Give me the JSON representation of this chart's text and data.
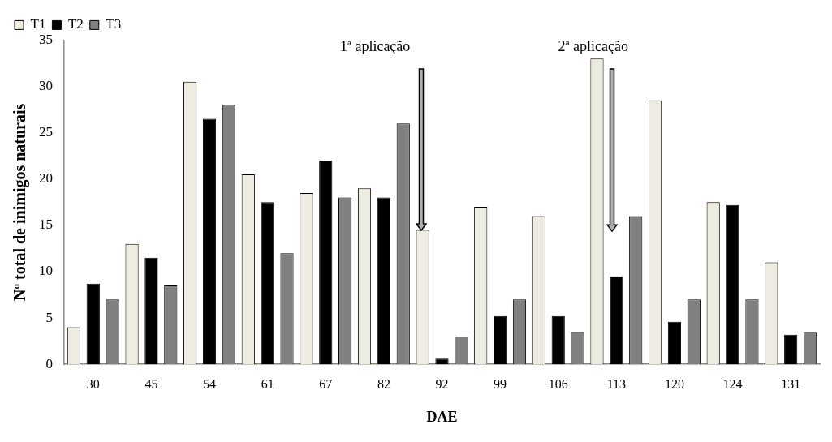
{
  "chart_data": {
    "type": "bar",
    "xlabel": "DAE",
    "ylabel": "Nº total de inimigos naturais",
    "categories": [
      "30",
      "45",
      "54",
      "61",
      "67",
      "82",
      "92",
      "99",
      "106",
      "113",
      "120",
      "124",
      "131"
    ],
    "series": [
      {
        "name": "T1",
        "color": "#eeebe0",
        "values": [
          4,
          13,
          30.5,
          20.5,
          18.5,
          19,
          14.5,
          17,
          16,
          33,
          28.5,
          17.5,
          11
        ]
      },
      {
        "name": "T2",
        "color": "#000000",
        "values": [
          8.7,
          11.5,
          26.5,
          17.5,
          22,
          18,
          0.6,
          5.2,
          5.2,
          9.5,
          4.6,
          17.2,
          3.2
        ]
      },
      {
        "name": "T3",
        "color": "#808080",
        "values": [
          7,
          8.5,
          28,
          12,
          18,
          26,
          3,
          7,
          3.5,
          16,
          7,
          7,
          3.5
        ]
      }
    ],
    "annotations": [
      "1ª aplicação",
      "2ª aplicação"
    ],
    "ylim": [
      0,
      35
    ],
    "yticks": [
      0,
      5,
      10,
      15,
      20,
      25,
      30,
      35
    ],
    "grid": false,
    "legend": "top left"
  }
}
